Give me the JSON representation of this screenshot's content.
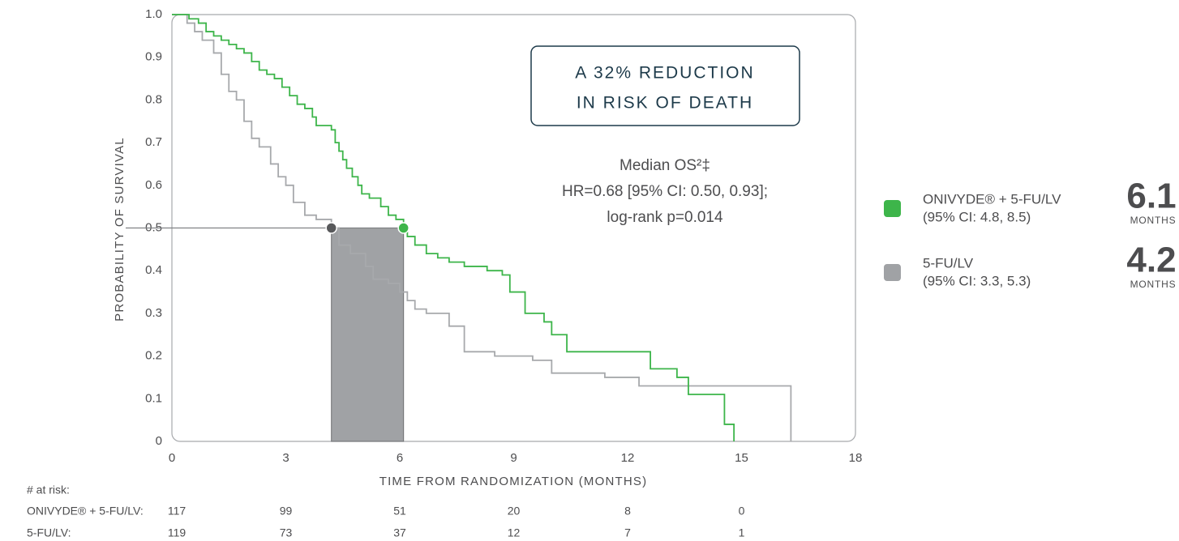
{
  "chart_data": {
    "type": "line",
    "step": "post",
    "x_label": "TIME FROM RANDOMIZATION (MONTHS)",
    "y_label": "PROBABILITY OF SURVIVAL",
    "xlim": [
      0,
      18
    ],
    "xticks": [
      0,
      3,
      6,
      9,
      12,
      15,
      18
    ],
    "ylim": [
      0,
      1
    ],
    "yticks": [
      0,
      0.1,
      0.2,
      0.3,
      0.4,
      0.5,
      0.6,
      0.7,
      0.8,
      0.9,
      {
        "value": 1,
        "label": "1.0"
      }
    ],
    "median_survival": 0.5,
    "annotation_box": [
      "A 32% REDUCTION",
      "IN RISK OF DEATH"
    ],
    "annotation_text": [
      "Median OS²‡",
      "HR=0.68 [95% CI: 0.50, 0.93];",
      "log-rank p=0.014"
    ],
    "at_risk_title": "# at risk:",
    "series": [
      {
        "name": "ONIVYDE® + 5-FU/LV",
        "color": "#3db54a",
        "x": [
          0,
          0.45,
          0.7,
          0.9,
          1.1,
          1.3,
          1.5,
          1.7,
          1.9,
          2.1,
          2.3,
          2.5,
          2.7,
          2.9,
          3.1,
          3.3,
          3.5,
          3.7,
          3.8,
          4.2,
          4.3,
          4.4,
          4.5,
          4.6,
          4.75,
          4.9,
          5.0,
          5.2,
          5.5,
          5.7,
          5.9,
          6.1,
          6.2,
          6.4,
          6.7,
          7.0,
          7.3,
          7.7,
          8.3,
          8.7,
          8.9,
          9.3,
          9.8,
          10.0,
          10.4,
          12.5,
          12.6,
          13.3,
          13.6,
          14.55,
          14.8
        ],
        "values": [
          1.0,
          0.99,
          0.98,
          0.96,
          0.95,
          0.94,
          0.93,
          0.92,
          0.91,
          0.89,
          0.87,
          0.86,
          0.85,
          0.83,
          0.81,
          0.79,
          0.78,
          0.76,
          0.74,
          0.73,
          0.7,
          0.68,
          0.66,
          0.64,
          0.62,
          0.6,
          0.58,
          0.57,
          0.55,
          0.53,
          0.52,
          0.5,
          0.48,
          0.46,
          0.44,
          0.43,
          0.42,
          0.41,
          0.4,
          0.39,
          0.35,
          0.3,
          0.28,
          0.25,
          0.21,
          0.21,
          0.17,
          0.15,
          0.11,
          0.04,
          0
        ],
        "median": 6.1,
        "median_unit": "MONTHS",
        "ci": "(95% CI: 4.8, 8.5)",
        "at_risk_label": "ONIVYDE® + 5-FU/LV:",
        "at_risk": [
          117,
          99,
          51,
          20,
          8,
          0
        ]
      },
      {
        "name": "5-FU/LV",
        "color": "#a7a9ac",
        "median_color": "#58595b",
        "x": [
          0,
          0.4,
          0.6,
          0.8,
          1.1,
          1.3,
          1.5,
          1.7,
          1.9,
          2.1,
          2.3,
          2.6,
          2.8,
          3.0,
          3.2,
          3.5,
          3.8,
          4.2,
          4.4,
          4.7,
          5.1,
          5.3,
          5.7,
          6.0,
          6.2,
          6.4,
          6.7,
          7.3,
          7.7,
          8.5,
          9.5,
          10.0,
          11.4,
          12.3,
          16.3
        ],
        "values": [
          1.0,
          0.98,
          0.96,
          0.94,
          0.91,
          0.86,
          0.82,
          0.8,
          0.75,
          0.71,
          0.69,
          0.65,
          0.62,
          0.6,
          0.56,
          0.53,
          0.52,
          0.5,
          0.46,
          0.44,
          0.41,
          0.38,
          0.37,
          0.35,
          0.33,
          0.31,
          0.3,
          0.27,
          0.21,
          0.2,
          0.19,
          0.16,
          0.15,
          0.13,
          0
        ],
        "median": 4.2,
        "median_unit": "MONTHS",
        "ci": "(95% CI: 3.3, 5.3)",
        "at_risk_label": "5-FU/LV:",
        "at_risk": [
          119,
          73,
          37,
          12,
          7,
          1
        ]
      }
    ]
  }
}
